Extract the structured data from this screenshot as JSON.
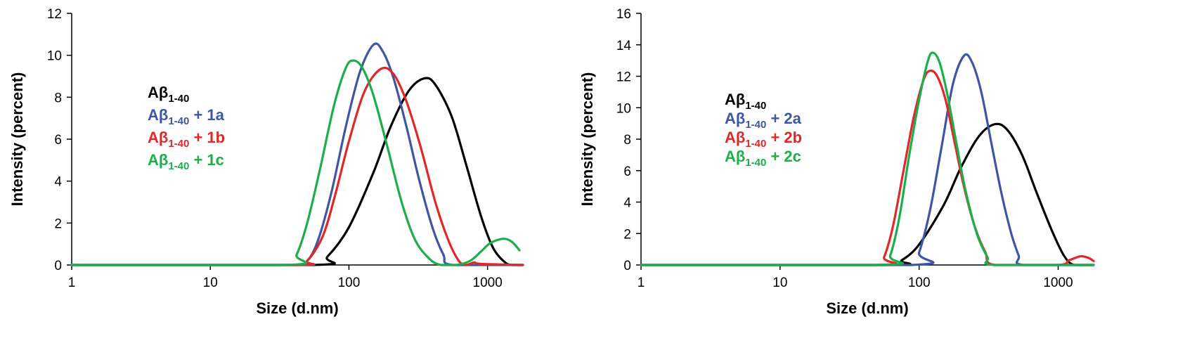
{
  "chart_data": [
    {
      "type": "line",
      "xlabel": "Size (d.nm)",
      "ylabel": "Intensity (percent)",
      "x_scale": "log",
      "xlim": [
        1,
        1800
      ],
      "ylim": [
        0,
        12
      ],
      "x_ticks": [
        1,
        10,
        100,
        1000
      ],
      "x_tick_labels": [
        "1",
        "10",
        "100",
        "1000"
      ],
      "y_ticks": [
        0,
        2,
        4,
        6,
        8,
        10,
        12
      ],
      "y_tick_labels": [
        "0",
        "2",
        "4",
        "6",
        "8",
        "10",
        "12"
      ],
      "grid": false,
      "legend_position": "left",
      "series": [
        {
          "name": "Aβ1-40",
          "legend_base": "Aβ",
          "legend_sub": "1-40",
          "legend_suffix": "",
          "color": "#000000",
          "points": [
            [
              1,
              0
            ],
            [
              55,
              0
            ],
            [
              70,
              0.4
            ],
            [
              100,
              1.8
            ],
            [
              150,
              4.4
            ],
            [
              200,
              6.6
            ],
            [
              270,
              8.3
            ],
            [
              350,
              8.9
            ],
            [
              420,
              8.6
            ],
            [
              550,
              7.1
            ],
            [
              700,
              4.8
            ],
            [
              900,
              2.3
            ],
            [
              1100,
              0.8
            ],
            [
              1350,
              0.1
            ],
            [
              1500,
              0
            ],
            [
              1800,
              0
            ]
          ]
        },
        {
          "name": "Aβ1-40 + 1a",
          "legend_base": "Aβ",
          "legend_sub": "1-40",
          "legend_suffix": " + 1a",
          "color": "#3F55A6",
          "points": [
            [
              1,
              0
            ],
            [
              40,
              0
            ],
            [
              50,
              0.2
            ],
            [
              60,
              1.2
            ],
            [
              75,
              3.5
            ],
            [
              95,
              6.6
            ],
            [
              120,
              9.2
            ],
            [
              150,
              10.5
            ],
            [
              175,
              10.2
            ],
            [
              210,
              8.9
            ],
            [
              260,
              6.6
            ],
            [
              320,
              4.1
            ],
            [
              400,
              1.8
            ],
            [
              480,
              0.5
            ],
            [
              560,
              0
            ],
            [
              1800,
              0
            ]
          ]
        },
        {
          "name": "Aβ1-40 + 1b",
          "legend_base": "Aβ",
          "legend_sub": "1-40",
          "legend_suffix": " + 1b",
          "color": "#E0282B",
          "points": [
            [
              1,
              0
            ],
            [
              40,
              0
            ],
            [
              50,
              0.2
            ],
            [
              65,
              1.4
            ],
            [
              80,
              3.4
            ],
            [
              100,
              5.9
            ],
            [
              130,
              8.3
            ],
            [
              170,
              9.35
            ],
            [
              210,
              9.1
            ],
            [
              260,
              7.8
            ],
            [
              330,
              5.6
            ],
            [
              420,
              3.0
            ],
            [
              520,
              1.2
            ],
            [
              620,
              0.2
            ],
            [
              700,
              0
            ],
            [
              800,
              0.12
            ],
            [
              900,
              0.05
            ],
            [
              1800,
              0
            ]
          ]
        },
        {
          "name": "Aβ1-40 + 1c",
          "legend_base": "Aβ",
          "legend_sub": "1-40",
          "legend_suffix": " + 1c",
          "color": "#1BAF4B",
          "points": [
            [
              1,
              0
            ],
            [
              36,
              0
            ],
            [
              42,
              0.5
            ],
            [
              50,
              2.0
            ],
            [
              62,
              4.6
            ],
            [
              78,
              7.6
            ],
            [
              95,
              9.4
            ],
            [
              108,
              9.75
            ],
            [
              125,
              9.4
            ],
            [
              150,
              8.1
            ],
            [
              190,
              5.6
            ],
            [
              240,
              3.0
            ],
            [
              300,
              1.2
            ],
            [
              380,
              0.3
            ],
            [
              460,
              0
            ],
            [
              600,
              0
            ],
            [
              750,
              0.2
            ],
            [
              900,
              0.65
            ],
            [
              1050,
              1.05
            ],
            [
              1300,
              1.25
            ],
            [
              1500,
              1.1
            ],
            [
              1700,
              0.7
            ]
          ]
        }
      ]
    },
    {
      "type": "line",
      "xlabel": "Size (d.nm)",
      "ylabel": "Intensity (percent)",
      "x_scale": "log",
      "xlim": [
        1,
        1800
      ],
      "ylim": [
        0,
        16
      ],
      "x_ticks": [
        1,
        10,
        100,
        1000
      ],
      "x_tick_labels": [
        "1",
        "10",
        "100",
        "1000"
      ],
      "y_ticks": [
        0,
        2,
        4,
        6,
        8,
        10,
        12,
        14,
        16
      ],
      "y_tick_labels": [
        "0",
        "2",
        "4",
        "6",
        "8",
        "10",
        "12",
        "14",
        "16"
      ],
      "grid": false,
      "legend_position": "left",
      "series": [
        {
          "name": "Aβ1-40",
          "legend_base": "Aβ",
          "legend_sub": "1-40",
          "legend_suffix": "",
          "color": "#000000",
          "points": [
            [
              1,
              0
            ],
            [
              60,
              0
            ],
            [
              75,
              0.3
            ],
            [
              100,
              1.3
            ],
            [
              150,
              3.8
            ],
            [
              200,
              6.2
            ],
            [
              270,
              8.2
            ],
            [
              350,
              8.95
            ],
            [
              430,
              8.6
            ],
            [
              550,
              7.0
            ],
            [
              700,
              4.6
            ],
            [
              900,
              2.2
            ],
            [
              1100,
              0.6
            ],
            [
              1300,
              0
            ],
            [
              1800,
              0
            ]
          ]
        },
        {
          "name": "Aβ1-40 + 2a",
          "legend_base": "Aβ",
          "legend_sub": "1-40",
          "legend_suffix": " + 2a",
          "color": "#3F55A6",
          "points": [
            [
              1,
              0
            ],
            [
              88,
              0
            ],
            [
              100,
              0.8
            ],
            [
              120,
              3.5
            ],
            [
              145,
              7.5
            ],
            [
              175,
              11.5
            ],
            [
              210,
              13.3
            ],
            [
              240,
              12.9
            ],
            [
              280,
              11.0
            ],
            [
              330,
              7.8
            ],
            [
              390,
              4.6
            ],
            [
              460,
              2.0
            ],
            [
              520,
              0.6
            ],
            [
              560,
              0
            ],
            [
              1800,
              0
            ]
          ]
        },
        {
          "name": "Aβ1-40 + 2b",
          "legend_base": "Aβ",
          "legend_sub": "1-40",
          "legend_suffix": " + 2b",
          "color": "#E0282B",
          "points": [
            [
              1,
              0
            ],
            [
              50,
              0
            ],
            [
              56,
              0.5
            ],
            [
              65,
              2.5
            ],
            [
              78,
              6.2
            ],
            [
              92,
              9.5
            ],
            [
              108,
              11.8
            ],
            [
              120,
              12.35
            ],
            [
              135,
              12.0
            ],
            [
              155,
              10.5
            ],
            [
              180,
              7.8
            ],
            [
              210,
              5.0
            ],
            [
              250,
              2.5
            ],
            [
              300,
              0.8
            ],
            [
              350,
              0
            ],
            [
              1000,
              0
            ],
            [
              1200,
              0.3
            ],
            [
              1450,
              0.55
            ],
            [
              1650,
              0.45
            ],
            [
              1800,
              0.25
            ]
          ]
        },
        {
          "name": "Aβ1-40 + 2c",
          "legend_base": "Aβ",
          "legend_sub": "1-40",
          "legend_suffix": " + 2c",
          "color": "#1BAF4B",
          "points": [
            [
              1,
              0
            ],
            [
              55,
              0
            ],
            [
              62,
              0.6
            ],
            [
              72,
              3.0
            ],
            [
              85,
              7.0
            ],
            [
              100,
              10.5
            ],
            [
              115,
              12.9
            ],
            [
              125,
              13.5
            ],
            [
              140,
              12.9
            ],
            [
              160,
              10.8
            ],
            [
              185,
              7.8
            ],
            [
              215,
              4.8
            ],
            [
              260,
              2.0
            ],
            [
              310,
              0.5
            ],
            [
              350,
              0
            ],
            [
              1800,
              0
            ]
          ]
        }
      ]
    }
  ]
}
